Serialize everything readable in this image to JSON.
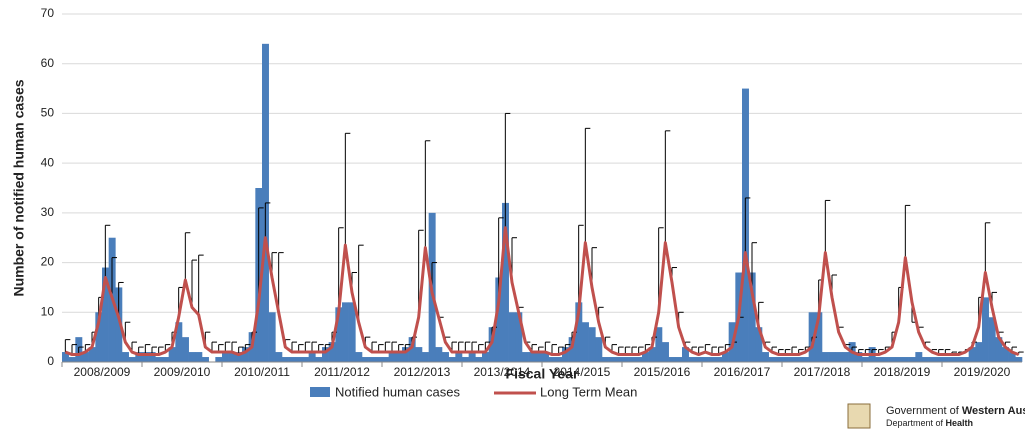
{
  "chart_data": {
    "type": "bar_line",
    "y_label": "Number of notified human cases",
    "x_label": "Fiscal Year",
    "categories": [
      null,
      null,
      null,
      null,
      null,
      null,
      "2008/2009",
      null,
      null,
      null,
      null,
      null,
      null,
      null,
      null,
      null,
      null,
      null,
      "2009/2010",
      null,
      null,
      null,
      null,
      null,
      null,
      null,
      null,
      null,
      null,
      null,
      "2010/2011",
      null,
      null,
      null,
      null,
      null,
      null,
      null,
      null,
      null,
      null,
      null,
      "2011/2012",
      null,
      null,
      null,
      null,
      null,
      null,
      null,
      null,
      null,
      null,
      null,
      "2012/2013",
      null,
      null,
      null,
      null,
      null,
      null,
      null,
      null,
      null,
      null,
      null,
      "2013/2014",
      null,
      null,
      null,
      null,
      null,
      null,
      null,
      null,
      null,
      null,
      null,
      "2014/2015",
      null,
      null,
      null,
      null,
      null,
      null,
      null,
      null,
      null,
      null,
      null,
      "2015/2016",
      null,
      null,
      null,
      null,
      null,
      null,
      null,
      null,
      null,
      null,
      null,
      "2016/2017",
      null,
      null,
      null,
      null,
      null,
      null,
      null,
      null,
      null,
      null,
      null,
      "2017/2018",
      null,
      null,
      null,
      null,
      null,
      null,
      null,
      null,
      null,
      null,
      null,
      "2018/2019",
      null,
      null,
      null,
      null,
      null,
      null,
      null,
      null,
      null,
      null,
      null,
      "2019/2020",
      null,
      null,
      null,
      null,
      null
    ],
    "series": [
      {
        "name": "Notified human cases",
        "type": "bar",
        "color": "#4a7ebb",
        "values": [
          2,
          1,
          5,
          2,
          3,
          10,
          19,
          25,
          15,
          2,
          1,
          2,
          2,
          2,
          1,
          1,
          3,
          8,
          5,
          2,
          2,
          1,
          0,
          1,
          2,
          2,
          2,
          3,
          6,
          35,
          64,
          10,
          2,
          1,
          1,
          1,
          1,
          2,
          1,
          3,
          4,
          11,
          12,
          12,
          2,
          1,
          1,
          1,
          1,
          2,
          2,
          3,
          5,
          3,
          2,
          30,
          3,
          2,
          1,
          2,
          1,
          2,
          1,
          2,
          7,
          17,
          32,
          10,
          10,
          2,
          2,
          2,
          2,
          1,
          1,
          3,
          5,
          12,
          8,
          7,
          5,
          1,
          1,
          1,
          1,
          1,
          1,
          2,
          3,
          7,
          4,
          1,
          1,
          3,
          1,
          1,
          1,
          1,
          1,
          2,
          8,
          18,
          55,
          18,
          7,
          2,
          1,
          1,
          1,
          1,
          1,
          1,
          10,
          10,
          2,
          2,
          2,
          2,
          4,
          2,
          1,
          3,
          1,
          1,
          1,
          1,
          1,
          1,
          2,
          1,
          1,
          1,
          1,
          1,
          1,
          1,
          3,
          4,
          13,
          9,
          5,
          3,
          2,
          1
        ]
      },
      {
        "name": "Long Term Mean",
        "type": "line",
        "color": "#c0504d",
        "values": [
          2,
          1.5,
          1.5,
          2,
          3,
          8,
          17,
          13,
          9,
          4,
          2,
          1.5,
          1.5,
          1.5,
          1.5,
          2,
          3,
          9,
          16.5,
          11,
          9.5,
          3,
          2,
          2,
          2,
          2,
          1.5,
          2,
          3,
          12,
          25,
          17,
          10,
          3,
          2,
          2,
          2,
          2,
          2,
          2,
          3,
          10,
          23.5,
          14,
          8,
          3,
          2,
          2,
          2,
          2,
          2,
          2,
          3,
          9,
          23,
          14,
          9,
          4,
          2,
          2,
          2,
          2,
          2,
          2,
          4,
          12,
          27,
          16,
          10,
          4,
          2,
          2,
          2,
          1.5,
          1.5,
          2,
          3,
          10,
          24,
          15,
          8,
          3,
          2,
          1.5,
          1.5,
          1.5,
          1.5,
          2,
          3,
          10,
          24,
          16,
          7,
          3,
          2,
          1.5,
          2,
          1.5,
          1.5,
          2,
          3,
          9,
          22,
          14,
          7,
          3,
          2,
          1.5,
          1.5,
          1.5,
          1.5,
          2,
          3,
          9,
          22,
          13,
          6,
          3,
          2,
          1.5,
          1.5,
          1.5,
          1.5,
          2,
          3,
          8,
          21,
          12,
          6,
          3,
          2,
          1.5,
          1.5,
          1.5,
          1.5,
          2,
          3,
          7,
          18,
          11,
          5,
          3,
          2,
          1.5
        ],
        "upper": [
          4.5,
          3.5,
          3,
          3.5,
          6,
          13,
          27.5,
          21,
          16,
          8,
          4,
          3,
          3.5,
          3,
          3,
          3.5,
          6,
          15,
          26,
          20.5,
          21.5,
          6,
          4,
          3.5,
          4,
          4,
          3,
          3.5,
          6,
          31,
          32,
          22,
          22,
          4.5,
          4,
          3.5,
          4,
          4,
          3.5,
          3.5,
          6,
          27,
          46,
          18,
          23.5,
          5,
          4,
          3.5,
          4,
          4,
          3.5,
          3.5,
          5,
          26.5,
          44.5,
          20,
          9,
          5,
          4,
          4,
          4,
          4,
          3.5,
          4,
          7,
          29,
          50,
          25,
          11,
          4,
          3.5,
          3,
          4,
          3.5,
          3,
          3.5,
          6,
          27.5,
          47,
          23,
          11,
          5,
          3.5,
          3,
          3,
          3,
          3,
          3.5,
          5,
          27,
          46.5,
          19,
          10,
          4,
          3,
          3,
          3.5,
          3,
          3,
          3.5,
          4,
          9,
          33,
          24,
          12,
          4,
          3,
          2.5,
          2.5,
          3,
          2.5,
          3,
          5,
          16.5,
          32.5,
          17.5,
          7,
          3.5,
          3,
          2.5,
          2.5,
          2.5,
          2.5,
          3,
          6,
          15,
          31.5,
          8,
          7,
          4,
          2.5,
          2.5,
          2.5,
          2,
          2,
          2.5,
          4,
          13,
          28,
          14,
          6,
          4,
          3,
          2
        ]
      }
    ],
    "ylim": [
      0,
      70
    ],
    "yticks": [
      0,
      10,
      20,
      30,
      40,
      50,
      60,
      70
    ],
    "grid": true
  },
  "branding": {
    "line1": "Government of ",
    "line1_bold": "Western Aus",
    "line2": "Department of ",
    "line2_bold": "Health"
  }
}
